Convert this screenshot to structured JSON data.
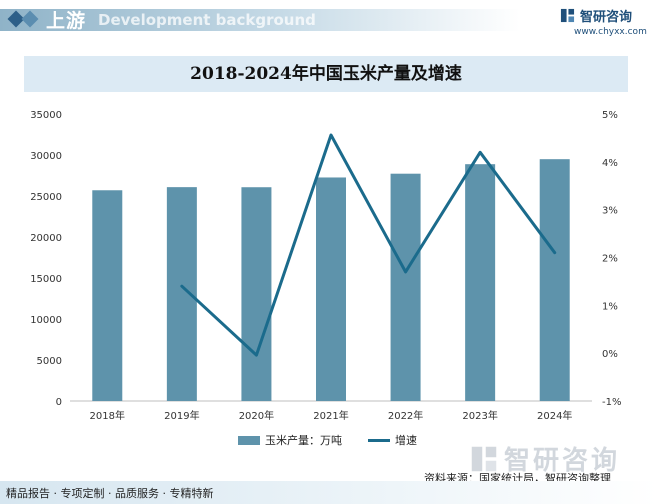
{
  "header": {
    "section_label": "上游",
    "section_label_en": "Development background",
    "brand_name": "智研咨询",
    "brand_url": "www.chyxx.com"
  },
  "chart_data": {
    "type": "bar+line",
    "title": "2018-2024年中国玉米产量及增速",
    "categories": [
      "2018年",
      "2019年",
      "2020年",
      "2021年",
      "2022年",
      "2023年",
      "2024年"
    ],
    "series": [
      {
        "name": "玉米产量：万吨",
        "type": "bar",
        "axis": "left",
        "color": "#5e93ab",
        "values": [
          25700,
          26080,
          26070,
          27260,
          27720,
          28880,
          29490
        ]
      },
      {
        "name": "增速",
        "type": "line",
        "axis": "right",
        "color": "#1b6b8c",
        "values": [
          null,
          1.4,
          -0.04,
          4.56,
          1.7,
          4.2,
          2.1
        ]
      }
    ],
    "y_left": {
      "min": 0,
      "max": 35000,
      "ticks": [
        "0",
        "5000",
        "10000",
        "15000",
        "20000",
        "25000",
        "30000",
        "35000"
      ]
    },
    "y_right": {
      "min": -1,
      "max": 5,
      "ticks": [
        "-1%",
        "0%",
        "1%",
        "2%",
        "3%",
        "4%",
        "5%"
      ]
    },
    "legend_position": "bottom"
  },
  "footer": {
    "source": "资料来源：国家统计局，智研咨询整理",
    "tagline": "精品报告 · 专项定制 · 品质服务 · 专精特新",
    "watermark": "智研咨询"
  }
}
